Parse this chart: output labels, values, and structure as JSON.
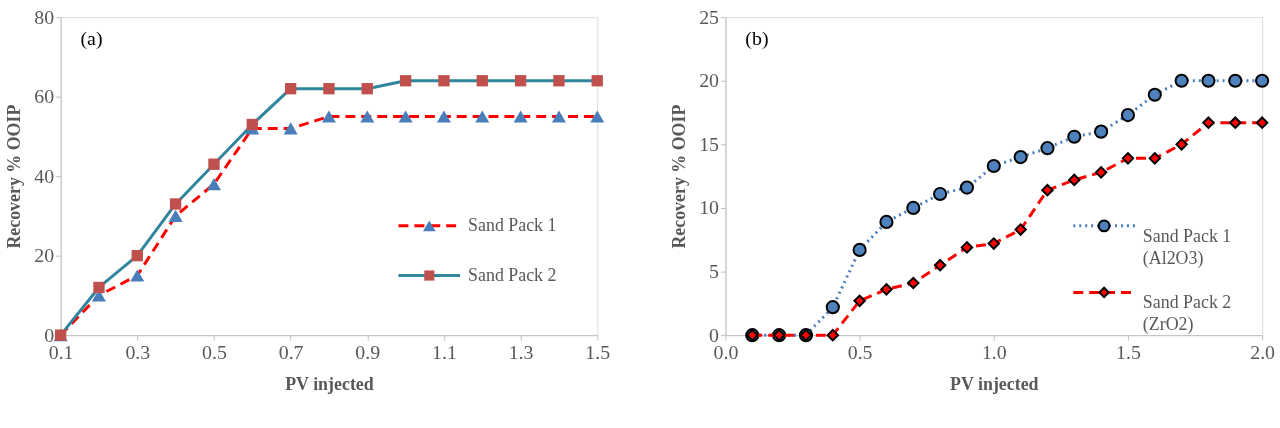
{
  "chart_data": [
    {
      "type": "line",
      "annotations": [
        "(a)"
      ],
      "xlabel": "PV injected",
      "ylabel": "Recovery % OOIP",
      "x": [
        0.1,
        0.2,
        0.3,
        0.4,
        0.5,
        0.6,
        0.7,
        0.8,
        0.9,
        1.0,
        1.1,
        1.2,
        1.3,
        1.4,
        1.5
      ],
      "xlim": [
        0.1,
        1.5
      ],
      "xticks": [
        0.1,
        0.3,
        0.5,
        0.7,
        0.9,
        1.1,
        1.3,
        1.5
      ],
      "ylim": [
        0,
        80
      ],
      "yticks": [
        0,
        20,
        40,
        60,
        80
      ],
      "grid": false,
      "legend": "bottom right",
      "series": [
        {
          "name": "Sand Pack 1",
          "color": "#ff0000",
          "marker": "triangle",
          "line_style": "dashed",
          "colors": [
            "#4a7ebb",
            "#4a7ebb",
            "#4a7ebb",
            "#4a7ebb",
            "#4a7ebb",
            "#4a7ebb",
            "#4a7ebb",
            "#4a7ebb",
            "#4a7ebb",
            "#4a7ebb",
            "#4a7ebb",
            "#4a7ebb",
            "#4a7ebb",
            "#4a7ebb",
            "#4a7ebb"
          ],
          "values": [
            0,
            10,
            15,
            30,
            38,
            52,
            52,
            55,
            55,
            55,
            55,
            55,
            55,
            55,
            55
          ]
        },
        {
          "name": "Sand Pack 2",
          "color": "#31859c",
          "marker": "square",
          "line_style": "solid",
          "colors": [
            "#c0504d",
            "#c0504d",
            "#c0504d",
            "#c0504d",
            "#c0504d",
            "#c0504d",
            "#c0504d",
            "#c0504d",
            "#c0504d",
            "#c0504d",
            "#c0504d",
            "#c0504d",
            "#c0504d",
            "#c0504d",
            "#c0504d"
          ],
          "values": [
            0,
            12,
            20,
            33,
            43,
            53,
            62,
            62,
            62,
            64,
            64,
            64,
            64,
            64,
            64
          ]
        }
      ]
    },
    {
      "type": "line",
      "annotations": [
        "(b)"
      ],
      "xlabel": "PV injected",
      "ylabel": "Recovery  % OOIP",
      "x": [
        0.1,
        0.2,
        0.3,
        0.4,
        0.5,
        0.6,
        0.7,
        0.8,
        0.9,
        1.0,
        1.1,
        1.2,
        1.3,
        1.4,
        1.5,
        1.6,
        1.7,
        1.8,
        1.9,
        2.0
      ],
      "xlim": [
        0,
        2
      ],
      "xticks": [
        {
          "value": 0,
          "label": "0.0"
        },
        0.5,
        {
          "value": 1,
          "label": "1.0"
        },
        1.5,
        {
          "value": 2,
          "label": "2.0"
        }
      ],
      "ylim": [
        0,
        25
      ],
      "yticks": [
        0,
        5,
        10,
        15,
        20,
        25
      ],
      "grid": false,
      "legend": "right",
      "series": [
        {
          "name": "Sand Pack 1\n(Al2O3)",
          "color": "#4a7ebb",
          "marker": "circle",
          "line_style": "dotted",
          "colors": [
            "#4f81bd",
            "#4f81bd",
            "#4f81bd",
            "#4f81bd",
            "#4f81bd",
            "#4f81bd",
            "#4f81bd",
            "#4f81bd",
            "#4f81bd",
            "#4f81bd",
            "#4f81bd",
            "#4f81bd",
            "#4f81bd",
            "#4f81bd",
            "#4f81bd",
            "#4f81bd",
            "#4f81bd",
            "#4f81bd",
            "#4f81bd",
            "#4f81bd"
          ],
          "values": [
            0,
            0,
            0,
            2.2,
            6.7,
            8.9,
            10,
            11.1,
            11.6,
            13.3,
            14,
            14.7,
            15.6,
            16,
            17.3,
            18.9,
            20,
            20,
            20,
            20
          ]
        },
        {
          "name": "Sand Pack 2\n(ZrO2)",
          "color": "#ff0000",
          "marker": "diamond",
          "line_style": "dashed",
          "colors": [
            "#ff0000",
            "#ff0000",
            "#ff0000",
            "#ff0000",
            "#ff0000",
            "#ff0000",
            "#ff0000",
            "#ff0000",
            "#ff0000",
            "#ff0000",
            "#ff0000",
            "#ff0000",
            "#ff0000",
            "#ff0000",
            "#ff0000",
            "#ff0000",
            "#ff0000",
            "#ff0000",
            "#ff0000",
            "#ff0000"
          ],
          "values": [
            0,
            0,
            0,
            0,
            2.7,
            3.6,
            4.1,
            5.5,
            6.9,
            7.2,
            8.3,
            11.4,
            12.2,
            12.8,
            13.9,
            13.9,
            15,
            16.7,
            16.7,
            16.7
          ]
        }
      ]
    }
  ]
}
